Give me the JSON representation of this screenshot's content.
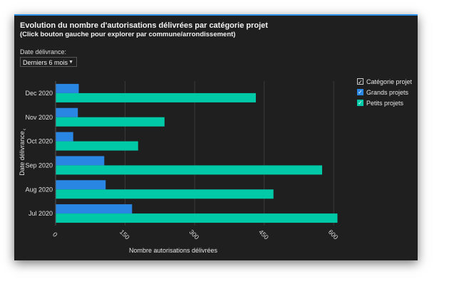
{
  "header": {
    "title": "Evolution du nombre d'autorisations délivrées par catégorie projet",
    "subtitle": "(Click bouton gauche pour explorer par commune/arrondissement)"
  },
  "filter": {
    "label": "Date délivrance:",
    "selected": "Derniers 6 mois"
  },
  "legend": {
    "title": "Catégorie projet",
    "items": [
      {
        "name": "Grands projets",
        "color": "#2a86e3"
      },
      {
        "name": "Petits projets",
        "color": "#00c9a7"
      }
    ]
  },
  "chart_data": {
    "type": "bar",
    "orientation": "horizontal",
    "categories": [
      "Dec 2020",
      "Nov 2020",
      "Oct 2020",
      "Sep 2020",
      "Aug 2020",
      "Jul 2020"
    ],
    "series": [
      {
        "name": "Grands projets",
        "values": [
          50,
          48,
          38,
          105,
          108,
          165
        ],
        "color": "#2a86e3"
      },
      {
        "name": "Petits projets",
        "values": [
          432,
          235,
          178,
          575,
          470,
          608
        ],
        "color": "#00c9a7"
      }
    ],
    "xlabel": "Nombre autorisations délivrées",
    "ylabel": "Date délivrance",
    "xticks": [
      0,
      150,
      300,
      450,
      600
    ],
    "xlim": [
      0,
      615
    ],
    "grid": true
  }
}
